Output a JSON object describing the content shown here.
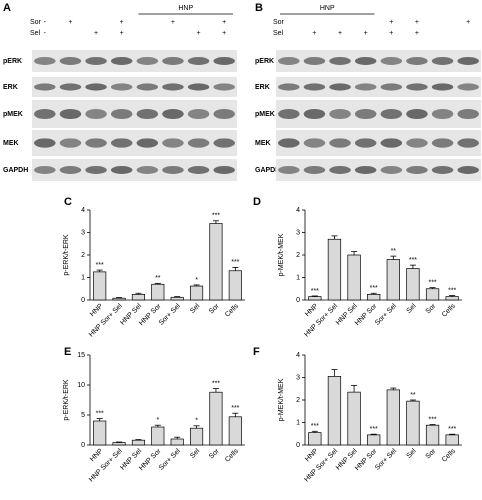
{
  "blots": [
    {
      "letter": "A",
      "group": "HNP",
      "row_labels": [
        "Sor",
        "Sel"
      ],
      "signs": [
        [
          "-",
          "+",
          null,
          "+",
          null,
          "+",
          null,
          "+"
        ],
        [
          "-",
          null,
          "+",
          "+",
          null,
          null,
          "+",
          "+"
        ]
      ],
      "proteins": [
        "pERK",
        "ERK",
        "pMEK",
        "MEK",
        "GAPDH"
      ]
    },
    {
      "letter": "B",
      "group": "HNP",
      "row_labels": [
        "Sor",
        "Sel"
      ],
      "signs": [
        [
          null,
          null,
          null,
          null,
          "+",
          "+",
          null,
          "+"
        ],
        [
          null,
          "+",
          "+",
          "+",
          "+",
          "+",
          null,
          null
        ]
      ],
      "proteins": [
        "pERK",
        "ERK",
        "pMEK",
        "MEK",
        "GAPDH"
      ]
    }
  ],
  "chart_data": [
    {
      "type": "bar",
      "letter": "C",
      "y_label": "p-ERK/t-ERK",
      "categories": [
        "HNP",
        "HNP Sor+ Sel",
        "HNP Sel",
        "HNP Sor",
        "Sor+ Sel",
        "Sel",
        "Sor",
        "Cells"
      ],
      "values": [
        1.25,
        0.08,
        0.25,
        0.7,
        0.12,
        0.62,
        3.4,
        1.3
      ],
      "errors": [
        0.08,
        0.03,
        0.05,
        0.04,
        0.03,
        0.05,
        0.12,
        0.15
      ],
      "annotations": [
        "***",
        null,
        null,
        "**",
        null,
        "*",
        "***",
        "***"
      ],
      "color": "#d9d9d9",
      "ylim": [
        0,
        4
      ],
      "yticks": [
        0,
        1,
        2,
        3,
        4
      ]
    },
    {
      "type": "bar",
      "letter": "D",
      "y_label": "p-MEK/t-MEK",
      "categories": [
        "HNP",
        "HNP Sor+ Sel",
        "HNP Sel",
        "HNP Sor",
        "Sor+ Sel",
        "Sel",
        "Sor",
        "Cells"
      ],
      "values": [
        0.15,
        2.7,
        2.0,
        0.25,
        1.8,
        1.4,
        0.5,
        0.15
      ],
      "errors": [
        0.03,
        0.15,
        0.15,
        0.05,
        0.15,
        0.15,
        0.05,
        0.05
      ],
      "annotations": [
        "***",
        null,
        null,
        "***",
        "**",
        "***",
        "***",
        "***"
      ],
      "color": "#d9d9d9",
      "ylim": [
        0,
        4
      ],
      "yticks": [
        0,
        1,
        2,
        3,
        4
      ]
    },
    {
      "type": "bar",
      "letter": "E",
      "y_label": "p-ERK/t-ERK",
      "categories": [
        "HNP",
        "HNP Sor+ Sel",
        "HNP Sel",
        "HNP Sor",
        "Sor+ Sel",
        "Sel",
        "Sor",
        "Cells"
      ],
      "values": [
        4.0,
        0.4,
        0.8,
        3.0,
        1.0,
        2.8,
        8.8,
        4.7
      ],
      "errors": [
        0.4,
        0.1,
        0.1,
        0.3,
        0.3,
        0.4,
        0.6,
        0.6
      ],
      "annotations": [
        "***",
        null,
        null,
        "*",
        null,
        "*",
        "***",
        "***"
      ],
      "color": "#d9d9d9",
      "ylim": [
        0,
        15
      ],
      "yticks": [
        0,
        5,
        10,
        15
      ]
    },
    {
      "type": "bar",
      "letter": "F",
      "y_label": "p-MEK/t-MEK",
      "categories": [
        "HNP",
        "HNP Sor+ Sel",
        "HNP Sel",
        "HNP Sor",
        "Sor+ Sel",
        "Sel",
        "Sor",
        "Cells"
      ],
      "values": [
        0.55,
        3.05,
        2.35,
        0.45,
        2.45,
        1.95,
        0.88,
        0.45
      ],
      "errors": [
        0.06,
        0.3,
        0.3,
        0.03,
        0.08,
        0.05,
        0.03,
        0.03
      ],
      "annotations": [
        "***",
        null,
        null,
        "***",
        null,
        "**",
        "***",
        "***"
      ],
      "color": "#d9d9d9",
      "ylim": [
        0,
        4
      ],
      "yticks": [
        0,
        1,
        2,
        3,
        4
      ]
    }
  ]
}
